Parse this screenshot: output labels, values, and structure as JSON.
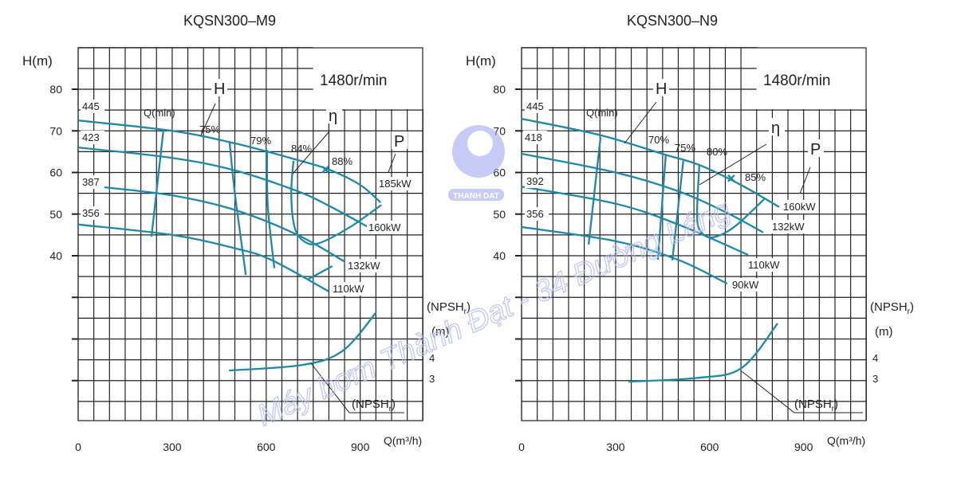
{
  "colors": {
    "curve": "#1b8aa8",
    "grid": "#222222",
    "watermark": "#b8bdf0"
  },
  "watermark": "Máy bơm Thành Đạt - 34 Đường Láng",
  "logo_text": "THANH DAT",
  "chart_data": [
    {
      "type": "line",
      "title": "KQSN300–M9",
      "speed": "1480r/min",
      "ylabel": "H(m)",
      "xlabel": "Q(m³/h)",
      "npsh_label": "(NPSH",
      "npsh_sub": "r",
      "npsh_close": ")",
      "npsh_unit": "(m)",
      "x_ticks": [
        "0",
        "300",
        "600",
        "900"
      ],
      "y_ticks": [
        "80",
        "70",
        "60",
        "50",
        "40"
      ],
      "npsh_ticks": [
        "4",
        "3"
      ],
      "xlim": [
        0,
        1100
      ],
      "ylim": [
        0,
        90
      ],
      "head_label": "H",
      "eff_label": "η",
      "power_label": "P",
      "head_curves": [
        {
          "name": "445",
          "points": [
            [
              0,
              72.5
            ],
            [
              300,
              70
            ],
            [
              500,
              67
            ],
            [
              700,
              63
            ],
            [
              800,
              60.7
            ],
            [
              900,
              57
            ],
            [
              965,
              52.8
            ]
          ]
        },
        {
          "name": "423",
          "points": [
            [
              0,
              66
            ],
            [
              300,
              63.5
            ],
            [
              500,
              60.5
            ],
            [
              700,
              55.5
            ],
            [
              800,
              52
            ],
            [
              923,
              47
            ]
          ]
        },
        {
          "name": "387",
          "points": [
            [
              76,
              56.5
            ],
            [
              300,
              54.5
            ],
            [
              500,
              51
            ],
            [
              700,
              45
            ],
            [
              852,
              38.5
            ]
          ]
        },
        {
          "name": "356",
          "points": [
            [
              0,
              47.5
            ],
            [
              300,
              45
            ],
            [
              500,
              41.8
            ],
            [
              616,
              39
            ],
            [
              800,
              31.4
            ]
          ]
        }
      ],
      "efficiency_curves": [
        {
          "name": "Q(min)",
          "points": [
            [
              272,
              70.2
            ],
            [
              234,
              44.6
            ]
          ]
        },
        {
          "name": "75%",
          "points": [
            [
              483,
              67.4
            ],
            [
              500,
              55
            ],
            [
              535,
              35.4
            ]
          ]
        },
        {
          "name": "79%",
          "points": [
            [
              603,
              65.4
            ],
            [
              605,
              52
            ],
            [
              626,
              37
            ]
          ]
        },
        {
          "name": "84%",
          "points": [
            [
              687,
              62.8
            ],
            [
              680,
              55
            ],
            [
              690,
              47
            ],
            [
              720,
              43.5
            ],
            [
              768,
              43
            ],
            [
              870,
              47
            ],
            [
              967,
              52.2
            ]
          ]
        },
        {
          "name": "",
          "points": [
            [
              811,
              37.5
            ],
            [
              735,
              34.4
            ]
          ]
        }
      ],
      "best_point": {
        "name": "88%",
        "q": 789,
        "h": 60.7
      },
      "power_labels": [
        "185kW",
        "160kW",
        "132kW",
        "110kW"
      ],
      "npsh_curve": [
        [
          481,
          3.46
        ],
        [
          717,
          3.73
        ],
        [
          845,
          4.42
        ],
        [
          951,
          6.27
        ]
      ]
    },
    {
      "type": "line",
      "title": "KQSN300–N9",
      "speed": "1480r/min",
      "ylabel": "H(m)",
      "xlabel": "Q(m³/h)",
      "npsh_label": "(NPSH",
      "npsh_sub": "r",
      "npsh_close": ")",
      "npsh_unit": "(m)",
      "x_ticks": [
        "0",
        "300",
        "600",
        "900"
      ],
      "y_ticks": [
        "80",
        "70",
        "60",
        "50",
        "40"
      ],
      "npsh_ticks": [
        "4",
        "3"
      ],
      "xlim": [
        0,
        1100
      ],
      "ylim": [
        0,
        90
      ],
      "head_label": "H",
      "eff_label": "η",
      "power_label": "P",
      "head_curves": [
        {
          "name": "445",
          "points": [
            [
              0,
              72.9
            ],
            [
              250,
              69
            ],
            [
              448,
              64.5
            ],
            [
              567,
              61.8
            ],
            [
              700,
              57
            ],
            [
              822,
              51.7
            ]
          ]
        },
        {
          "name": "418",
          "points": [
            [
              0,
              64.5
            ],
            [
              300,
              60
            ],
            [
              500,
              55.5
            ],
            [
              650,
              50.5
            ],
            [
              771,
              45.6
            ]
          ]
        },
        {
          "name": "392",
          "points": [
            [
              0,
              56.6
            ],
            [
              300,
              52.5
            ],
            [
              500,
              47.5
            ],
            [
              723,
              40.2
            ]
          ]
        },
        {
          "name": "356",
          "points": [
            [
              0,
              46.9
            ],
            [
              300,
              43.5
            ],
            [
              500,
              39
            ],
            [
              656,
              33.3
            ]
          ]
        }
      ],
      "efficiency_curves": [
        {
          "name": "Q(min)",
          "points": [
            [
              252,
              68.5
            ],
            [
              214,
              42.7
            ]
          ]
        },
        {
          "name": "70%",
          "points": [
            [
              460,
              64.1
            ],
            [
              435,
              39
            ]
          ]
        },
        {
          "name": "75%",
          "points": [
            [
              516,
              62.8
            ],
            [
              481,
              38.9
            ]
          ]
        },
        {
          "name": "80%",
          "points": [
            [
              567,
              61.6
            ],
            [
              560,
              50
            ],
            [
              570,
              46
            ],
            [
              608,
              44.4
            ],
            [
              680,
              47
            ],
            [
              774,
              53.6
            ]
          ]
        }
      ],
      "best_point": {
        "name": "85%",
        "q": 669,
        "h": 58.6
      },
      "power_labels": [
        "160kW",
        "132kW",
        "110kW",
        "90kW"
      ],
      "npsh_curve": [
        [
          341,
          2.92
        ],
        [
          560,
          3.1
        ],
        [
          702,
          3.58
        ],
        [
          817,
          5.73
        ]
      ]
    }
  ]
}
